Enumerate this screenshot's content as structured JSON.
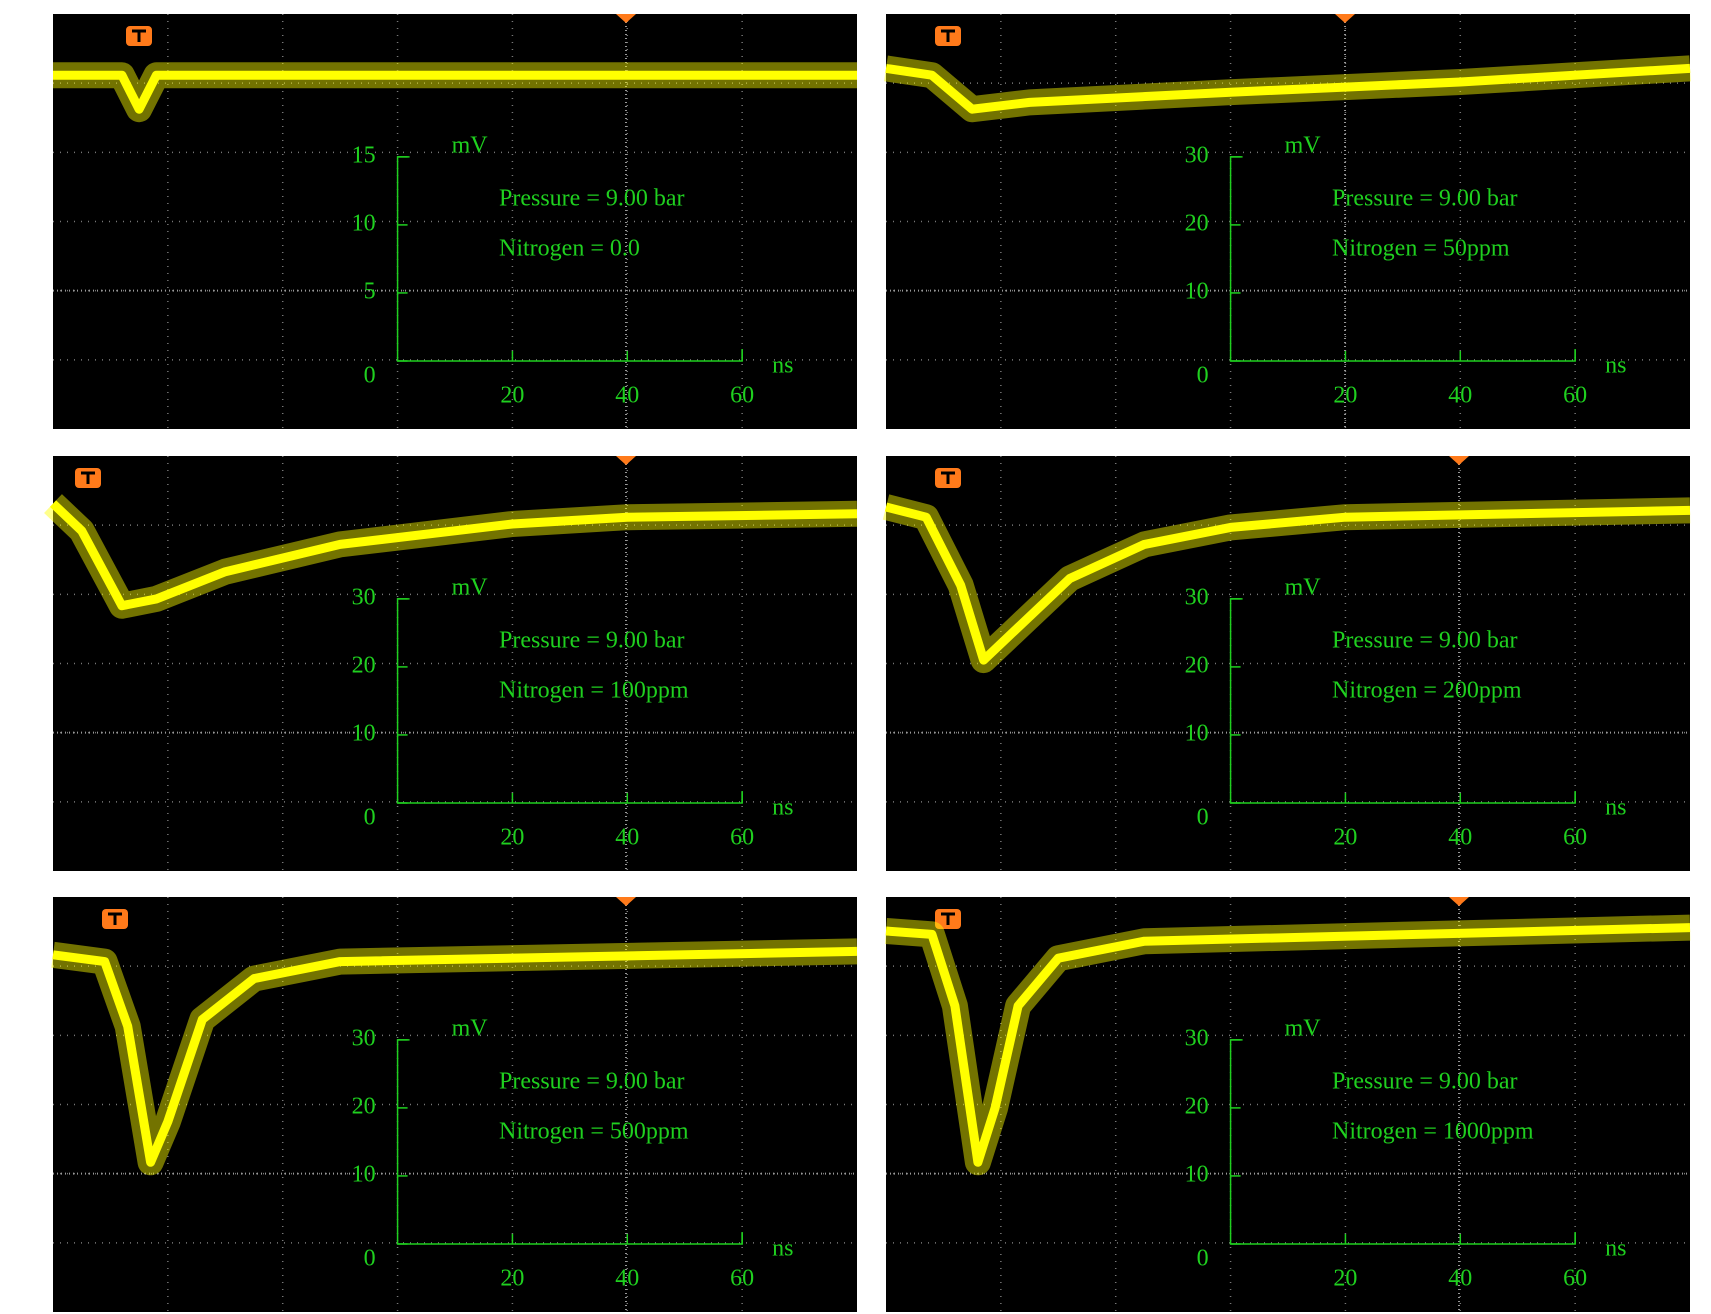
{
  "chart_data": [
    {
      "type": "line",
      "annotations": [
        "Pressure = 9.00 bar",
        "Nitrogen = 0.0"
      ],
      "y_unit": "mV",
      "x_unit": "ns",
      "xlim": [
        -60,
        80
      ],
      "ylim": [
        -5,
        25.5
      ],
      "xticks": [
        20,
        40,
        60
      ],
      "yticks": [
        0,
        5,
        10,
        15
      ],
      "x": [
        -60,
        -48,
        -45,
        -42,
        80
      ],
      "series": [
        {
          "color": "#ffff00",
          "values": [
            21,
            21,
            18.5,
            21,
            21
          ]
        }
      ]
    },
    {
      "type": "line",
      "annotations": [
        "Pressure = 9.00 bar",
        "Nitrogen = 50ppm"
      ],
      "y_unit": "mV",
      "x_unit": "ns",
      "xlim": [
        -60,
        80
      ],
      "ylim": [
        -10,
        51
      ],
      "xticks": [
        20,
        40,
        60
      ],
      "yticks": [
        0,
        10,
        20,
        30
      ],
      "x": [
        -60,
        -52,
        -45,
        -35,
        0,
        40,
        80
      ],
      "series": [
        {
          "color": "#ffff00",
          "values": [
            43,
            42,
            37,
            38,
            39.5,
            41,
            43
          ]
        }
      ]
    },
    {
      "type": "line",
      "annotations": [
        "Pressure = 9.00 bar",
        "Nitrogen = 100ppm"
      ],
      "y_unit": "mV",
      "x_unit": "ns",
      "xlim": [
        -60,
        80
      ],
      "ylim": [
        -10,
        51
      ],
      "xticks": [
        20,
        40,
        60
      ],
      "yticks": [
        0,
        10,
        20,
        30
      ],
      "x": [
        -60,
        -55,
        -48,
        -42,
        -30,
        -10,
        20,
        40,
        80
      ],
      "series": [
        {
          "color": "#ffff00",
          "values": [
            44,
            40,
            29,
            30,
            34,
            38,
            41,
            42,
            42.5
          ]
        }
      ]
    },
    {
      "type": "line",
      "annotations": [
        "Pressure = 9.00 bar",
        "Nitrogen = 200ppm"
      ],
      "y_unit": "mV",
      "x_unit": "ns",
      "xlim": [
        -60,
        80
      ],
      "ylim": [
        -10,
        51
      ],
      "xticks": [
        20,
        40,
        60
      ],
      "yticks": [
        0,
        10,
        20,
        30
      ],
      "x": [
        -60,
        -53,
        -47,
        -43,
        -38,
        -28,
        -15,
        0,
        20,
        80
      ],
      "series": [
        {
          "color": "#ffff00",
          "values": [
            43.5,
            42,
            32,
            21,
            25,
            33,
            38,
            40.5,
            42,
            43
          ]
        }
      ]
    },
    {
      "type": "line",
      "annotations": [
        "Pressure = 9.00 bar",
        "Nitrogen = 500ppm"
      ],
      "y_unit": "mV",
      "x_unit": "ns",
      "xlim": [
        -60,
        80
      ],
      "ylim": [
        -10,
        51
      ],
      "xticks": [
        20,
        40,
        60
      ],
      "yticks": [
        0,
        10,
        20,
        30
      ],
      "x": [
        -60,
        -51,
        -47,
        -43,
        -40,
        -34,
        -25,
        -10,
        80
      ],
      "series": [
        {
          "color": "#ffff00",
          "values": [
            42.5,
            41.5,
            32,
            12,
            18,
            33,
            39,
            41.5,
            43
          ]
        }
      ]
    },
    {
      "type": "line",
      "annotations": [
        "Pressure = 9.00 bar",
        "Nitrogen = 1000ppm"
      ],
      "y_unit": "mV",
      "x_unit": "ns",
      "xlim": [
        -60,
        80
      ],
      "ylim": [
        -10,
        51
      ],
      "xticks": [
        20,
        40,
        60
      ],
      "yticks": [
        0,
        10,
        20,
        30
      ],
      "x": [
        -60,
        -52,
        -48,
        -44,
        -41,
        -37,
        -30,
        -15,
        80
      ],
      "series": [
        {
          "color": "#ffff00",
          "values": [
            46,
            45.5,
            35,
            12,
            20,
            35,
            42,
            44.5,
            46.5
          ]
        }
      ]
    }
  ]
}
